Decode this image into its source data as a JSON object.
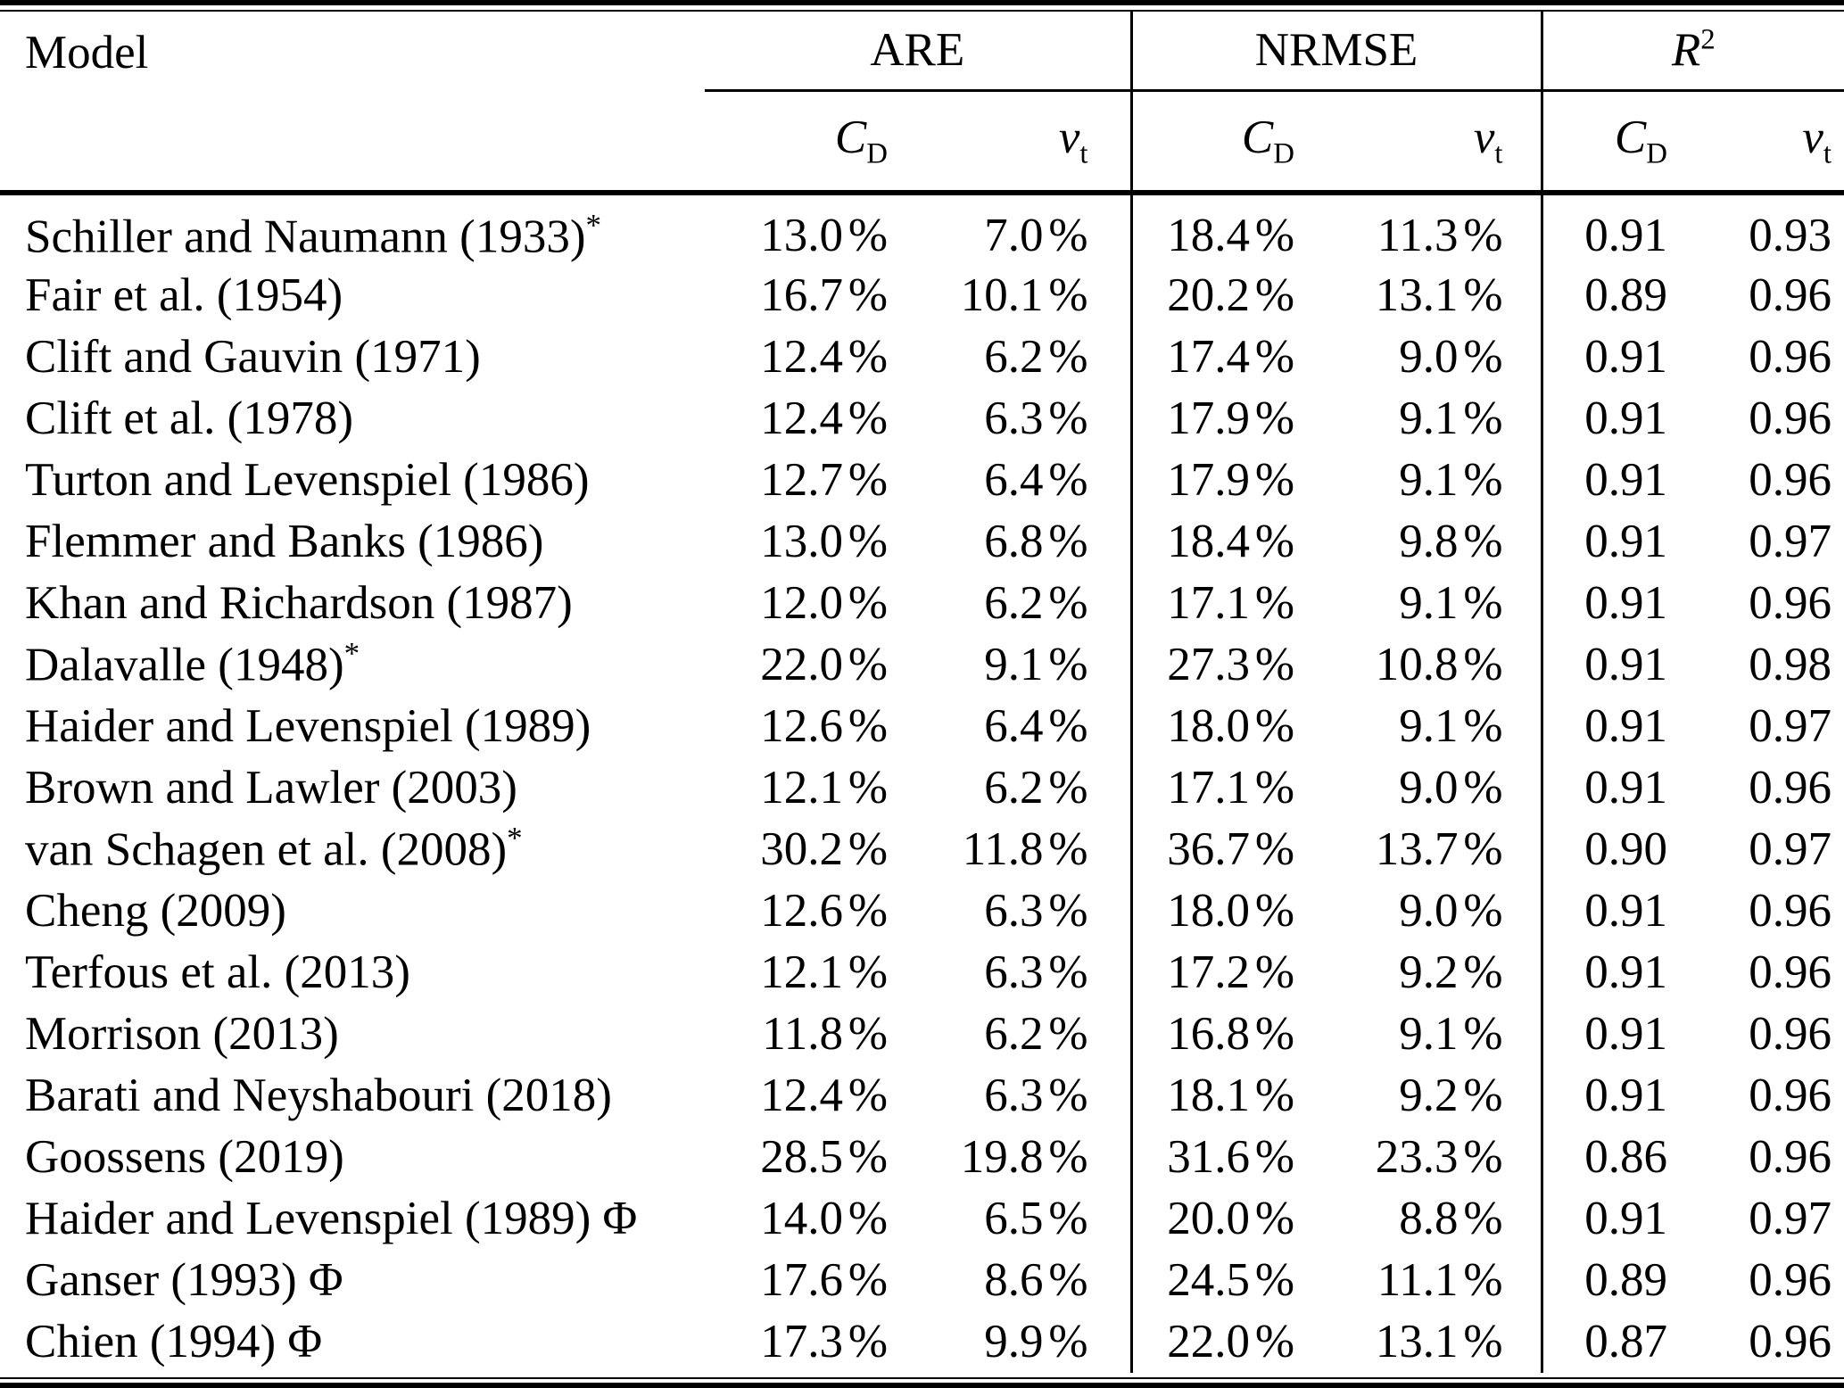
{
  "colors": {
    "text": "#000000",
    "background": "#ffffff",
    "rule": "#000000"
  },
  "table": {
    "model_header": "Model",
    "groups": [
      {
        "label": "ARE"
      },
      {
        "label": "NRMSE"
      },
      {
        "label": "R",
        "sup": "2"
      }
    ],
    "subheaders": [
      {
        "base": "C",
        "sub": "D"
      },
      {
        "base": "v",
        "sub": "t"
      },
      {
        "base": "C",
        "sub": "D"
      },
      {
        "base": "v",
        "sub": "t"
      },
      {
        "base": "C",
        "sub": "D"
      },
      {
        "base": "v",
        "sub": "t"
      }
    ],
    "rows": [
      {
        "model": "Schiller and Naumann (1933)*",
        "values": [
          "13.0 %",
          "7.0 %",
          "18.4 %",
          "11.3 %",
          "0.91",
          "0.93"
        ]
      },
      {
        "model": "Fair et al. (1954)",
        "values": [
          "16.7 %",
          "10.1 %",
          "20.2 %",
          "13.1 %",
          "0.89",
          "0.96"
        ]
      },
      {
        "model": "Clift and Gauvin (1971)",
        "values": [
          "12.4 %",
          "6.2 %",
          "17.4 %",
          "9.0 %",
          "0.91",
          "0.96"
        ]
      },
      {
        "model": "Clift et al. (1978)",
        "values": [
          "12.4 %",
          "6.3 %",
          "17.9 %",
          "9.1 %",
          "0.91",
          "0.96"
        ]
      },
      {
        "model": "Turton and Levenspiel (1986)",
        "values": [
          "12.7 %",
          "6.4 %",
          "17.9 %",
          "9.1 %",
          "0.91",
          "0.96"
        ]
      },
      {
        "model": "Flemmer and Banks (1986)",
        "values": [
          "13.0 %",
          "6.8 %",
          "18.4 %",
          "9.8 %",
          "0.91",
          "0.97"
        ]
      },
      {
        "model": "Khan and Richardson (1987)",
        "values": [
          "12.0 %",
          "6.2 %",
          "17.1 %",
          "9.1 %",
          "0.91",
          "0.96"
        ]
      },
      {
        "model": "Dalavalle (1948)*",
        "values": [
          "22.0 %",
          "9.1 %",
          "27.3 %",
          "10.8 %",
          "0.91",
          "0.98"
        ]
      },
      {
        "model": "Haider and Levenspiel (1989)",
        "values": [
          "12.6 %",
          "6.4 %",
          "18.0 %",
          "9.1 %",
          "0.91",
          "0.97"
        ]
      },
      {
        "model": "Brown and Lawler (2003)",
        "values": [
          "12.1 %",
          "6.2 %",
          "17.1 %",
          "9.0 %",
          "0.91",
          "0.96"
        ]
      },
      {
        "model": "van Schagen et al. (2008)*",
        "values": [
          "30.2 %",
          "11.8 %",
          "36.7 %",
          "13.7 %",
          "0.90",
          "0.97"
        ]
      },
      {
        "model": "Cheng (2009)",
        "values": [
          "12.6 %",
          "6.3 %",
          "18.0 %",
          "9.0 %",
          "0.91",
          "0.96"
        ]
      },
      {
        "model": "Terfous et al. (2013)",
        "values": [
          "12.1 %",
          "6.3 %",
          "17.2 %",
          "9.2 %",
          "0.91",
          "0.96"
        ]
      },
      {
        "model": "Morrison (2013)",
        "values": [
          "11.8 %",
          "6.2 %",
          "16.8 %",
          "9.1 %",
          "0.91",
          "0.96"
        ]
      },
      {
        "model": "Barati and Neyshabouri (2018)",
        "values": [
          "12.4 %",
          "6.3 %",
          "18.1 %",
          "9.2 %",
          "0.91",
          "0.96"
        ]
      },
      {
        "model": "Goossens (2019)",
        "values": [
          "28.5 %",
          "19.8 %",
          "31.6 %",
          "23.3 %",
          "0.86",
          "0.96"
        ]
      },
      {
        "model": "Haider and Levenspiel (1989) Φ",
        "values": [
          "14.0 %",
          "6.5 %",
          "20.0 %",
          "8.8 %",
          "0.91",
          "0.97"
        ]
      },
      {
        "model": "Ganser (1993) Φ",
        "values": [
          "17.6 %",
          "8.6 %",
          "24.5 %",
          "11.1 %",
          "0.89",
          "0.96"
        ]
      },
      {
        "model": "Chien (1994) Φ",
        "values": [
          "17.3 %",
          "9.9 %",
          "22.0 %",
          "13.1 %",
          "0.87",
          "0.96"
        ]
      }
    ]
  }
}
